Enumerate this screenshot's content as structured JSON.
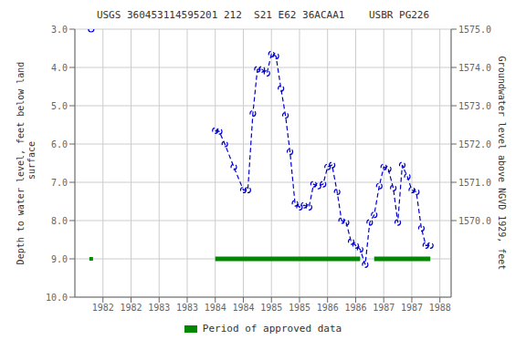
{
  "chart_data": {
    "type": "line",
    "title": "USGS 360453114595201 212  S21 E62 36ACAA1    USBR PG226",
    "y_label": "Depth to water level, feet below land\n surface",
    "y2_label": "Groundwater level above NGVD 1929, feet",
    "xlim": [
      1981.5,
      1988.2
    ],
    "xticks": [
      1982,
      {
        "value": 1982.5,
        "label": "1982"
      },
      1983,
      {
        "value": 1983.5,
        "label": "1983"
      },
      1984,
      {
        "value": 1984.5,
        "label": "1984"
      },
      1985,
      {
        "value": 1985.5,
        "label": "1985"
      },
      1986,
      {
        "value": 1986.5,
        "label": "1986"
      },
      1987,
      {
        "value": 1987.5,
        "label": "1987"
      },
      1988
    ],
    "ylim": [
      3.0,
      10.0
    ],
    "yticks": [
      {
        "value": 3,
        "label": "3.0"
      },
      {
        "value": 4,
        "label": "4.0"
      },
      {
        "value": 5,
        "label": "5.0"
      },
      {
        "value": 6,
        "label": "6.0"
      },
      {
        "value": 7,
        "label": "7.0"
      },
      {
        "value": 8,
        "label": "8.0"
      },
      {
        "value": 9,
        "label": "9.0"
      },
      {
        "value": 10,
        "label": "10.0"
      }
    ],
    "y2lim": [
      1575.0,
      1568.0
    ],
    "y2ticks": [
      {
        "value": 1575,
        "label": "1575.0"
      },
      {
        "value": 1574,
        "label": "1574.0"
      },
      {
        "value": 1573,
        "label": "1573.0"
      },
      {
        "value": 1572,
        "label": "1572.0"
      },
      {
        "value": 1571,
        "label": "1571.0"
      },
      {
        "value": 1570,
        "label": "1570.0"
      }
    ],
    "grid": true,
    "legend": "bottom",
    "series": [
      {
        "x": [
          1981.79
        ],
        "values": [
          3.0
        ],
        "color": "#0000CC",
        "marker": "circle",
        "line_style": "none"
      },
      {
        "x": [
          1984.0,
          1984.07,
          1984.17,
          1984.33,
          1984.5,
          1984.58,
          1984.67,
          1984.75,
          1984.83,
          1984.92,
          1985.0,
          1985.08,
          1985.17,
          1985.25,
          1985.33,
          1985.42,
          1985.5,
          1985.58,
          1985.67,
          1985.75,
          1985.83,
          1985.92,
          1986.0,
          1986.08,
          1986.17,
          1986.25,
          1986.33,
          1986.42,
          1986.5,
          1986.58,
          1986.67,
          1986.75,
          1986.83,
          1986.92,
          1987.0,
          1987.08,
          1987.17,
          1987.25,
          1987.33,
          1987.42,
          1987.5,
          1987.58,
          1987.67,
          1987.75,
          1987.83
        ],
        "values": [
          5.65,
          5.67,
          6.0,
          6.6,
          7.2,
          7.2,
          5.2,
          4.05,
          4.05,
          4.15,
          3.65,
          3.7,
          4.55,
          5.25,
          6.2,
          7.55,
          7.65,
          7.6,
          7.65,
          7.05,
          7.1,
          7.05,
          6.6,
          6.55,
          7.25,
          8.0,
          8.05,
          8.55,
          8.65,
          8.75,
          9.15,
          8.05,
          7.85,
          7.1,
          6.6,
          6.65,
          7.15,
          8.05,
          6.55,
          6.85,
          7.2,
          7.25,
          8.2,
          8.65,
          8.65
        ],
        "color": "#0000CC",
        "marker": "circle",
        "line_style": "dashed"
      }
    ],
    "approved_segments": [
      [
        1984.0,
        1986.58
      ],
      [
        1986.83,
        1987.83
      ]
    ],
    "approved_y": 9.0,
    "approved_point_x": 1981.79,
    "approved_color": "#008800",
    "legend_label": "Period of approved data"
  }
}
